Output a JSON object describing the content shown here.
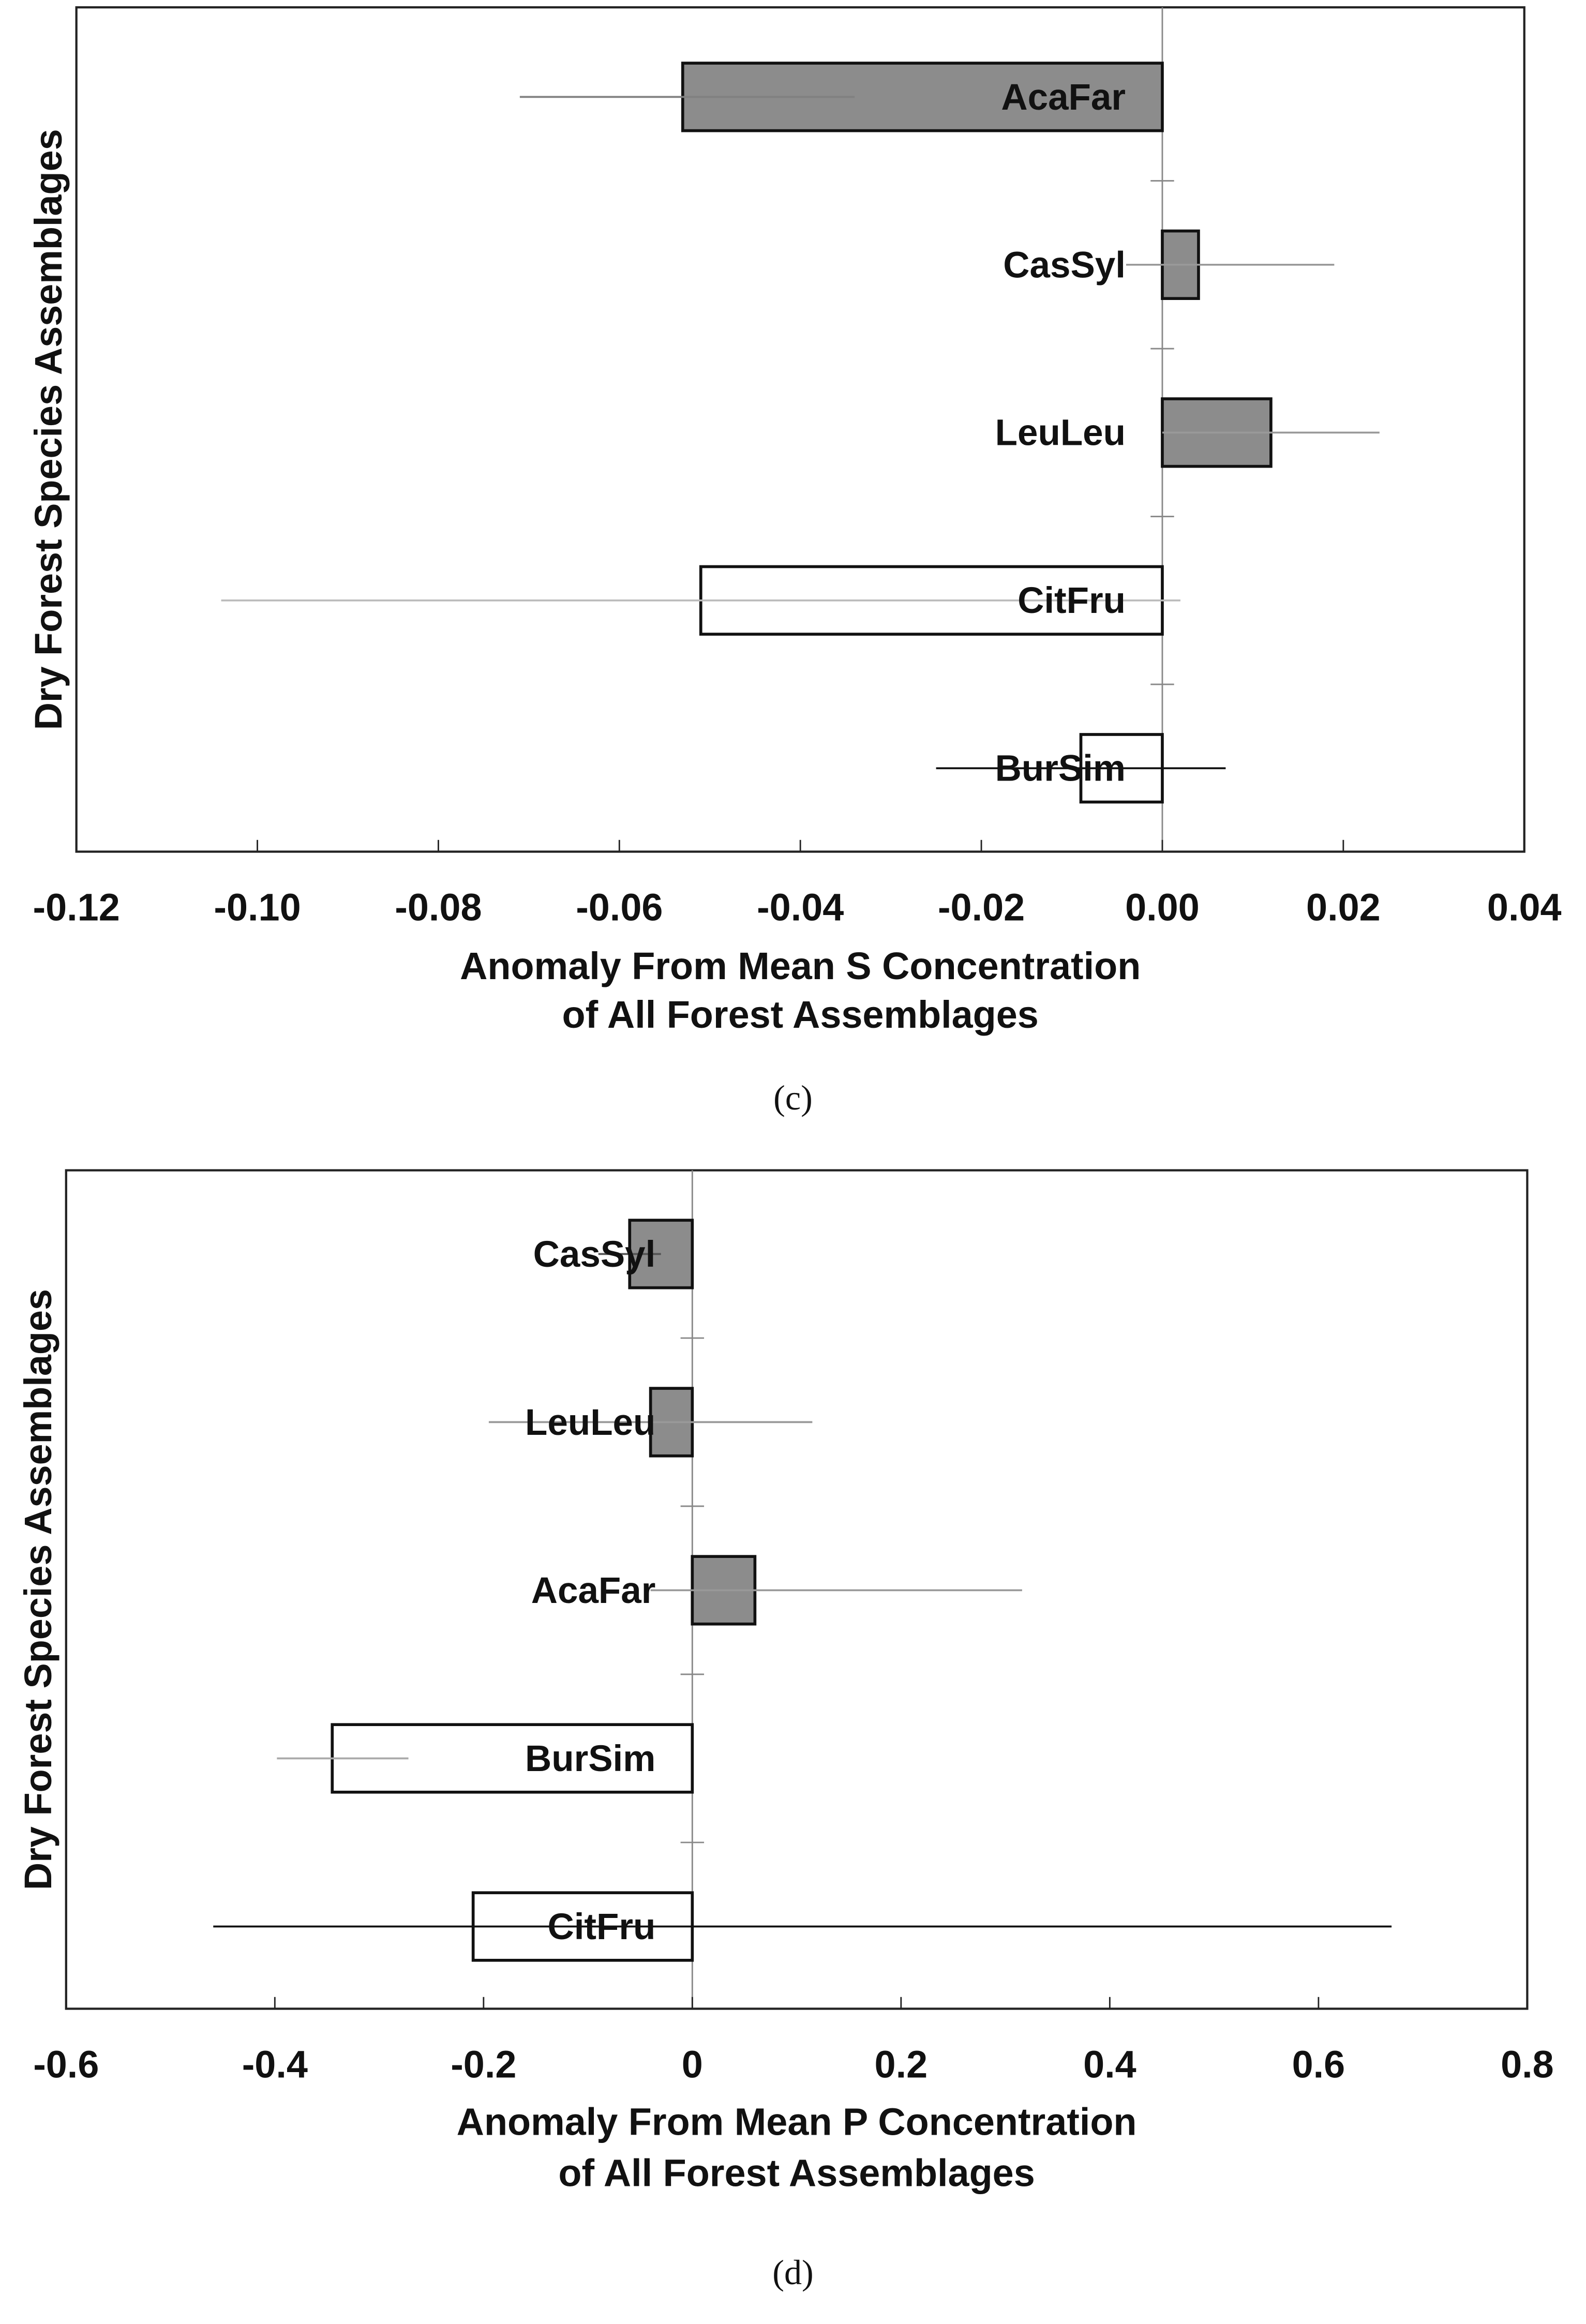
{
  "chart_data": [
    {
      "type": "bar",
      "horizontal": true,
      "y_label": "Dry Forest Species Assemblages",
      "x_label": [
        "Anomaly From Mean S Concentration",
        "of All Forest Assemblages"
      ],
      "caption": "(c)",
      "categories": [
        "AcaFar",
        "CasSyl",
        "LeuLeu",
        "CitFru",
        "BurSim"
      ],
      "values": [
        -0.053,
        0.004,
        0.012,
        -0.051,
        -0.009
      ],
      "errors_minus": [
        0.018,
        0.008,
        0.012,
        0.053,
        0.016
      ],
      "errors_plus": [
        0.019,
        0.015,
        0.012,
        0.053,
        0.016
      ],
      "colors": [
        "#8c8c8c",
        "#8c8c8c",
        "#8c8c8c",
        "#ffffff",
        "#ffffff"
      ],
      "error_colors": [
        "#808080",
        "#999999",
        "#999999",
        "#bbbbbb",
        "#111111"
      ],
      "xlim": [
        -0.12,
        0.04
      ],
      "xticks": [
        -0.12,
        {
          "value": -0.1,
          "label": "-0.10"
        },
        -0.08,
        -0.06,
        -0.04,
        -0.02,
        {
          "value": 0,
          "label": "0.00"
        },
        0.02,
        0.04
      ]
    },
    {
      "type": "bar",
      "horizontal": true,
      "y_label": "Dry Forest Species Assemblages",
      "x_label": [
        "Anomaly From Mean P Concentration",
        "of All Forest Assemblages"
      ],
      "caption": "(d)",
      "categories": [
        "CasSyl",
        "LeuLeu",
        "AcaFar",
        "BurSim",
        "CitFru"
      ],
      "values": [
        -0.06,
        -0.04,
        0.06,
        -0.345,
        -0.21
      ],
      "errors_minus": [
        0.03,
        0.155,
        0.1,
        0.053,
        0.249
      ],
      "errors_plus": [
        0.03,
        0.155,
        0.256,
        0.073,
        0.88
      ],
      "colors": [
        "#8c8c8c",
        "#8c8c8c",
        "#8c8c8c",
        "#ffffff",
        "#ffffff"
      ],
      "error_colors": [
        "#555555",
        "#999999",
        "#999999",
        "#aaaaaa",
        "#111111"
      ],
      "xlim": [
        -0.6,
        0.8
      ],
      "xticks": [
        -0.6,
        -0.4,
        -0.2,
        0,
        0.2,
        0.4,
        0.6,
        0.8
      ]
    }
  ]
}
